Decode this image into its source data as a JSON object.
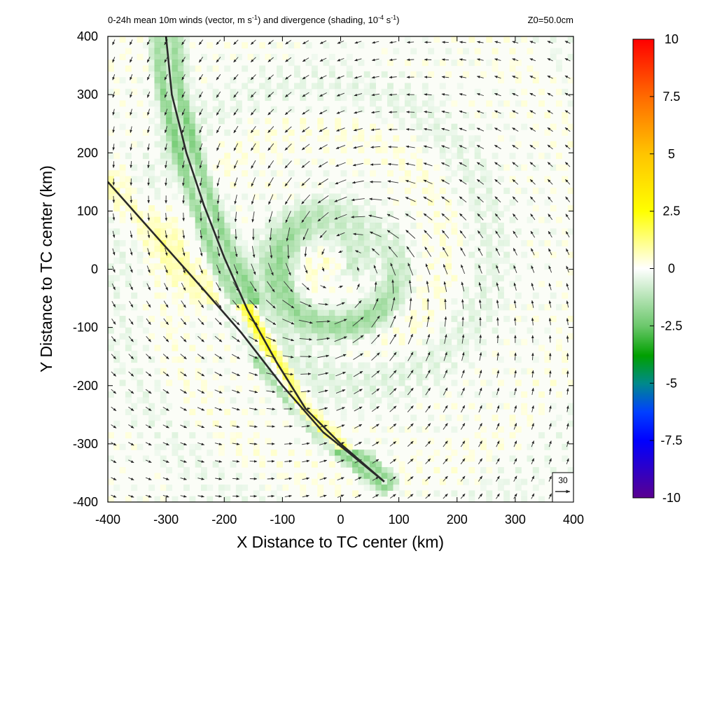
{
  "chart_data": {
    "type": "heatmap",
    "title": {
      "lead": "0-24h mean 10m winds (vector, m s",
      "exp1": "-1",
      "mid": ") and divergence (shading, 10",
      "exp2": "-4",
      "unit": " s",
      "exp3": "-1",
      "tail": ")"
    },
    "annotation": "Z0=50.0cm",
    "xlabel": "X Distance to TC center (km)",
    "ylabel": "Y Distance to TC center (km)",
    "xlim": [
      -400,
      400
    ],
    "ylim": [
      -400,
      400
    ],
    "xticks": [
      "-400",
      "-300",
      "-200",
      "-100",
      "0",
      "100",
      "200",
      "300",
      "400"
    ],
    "yticks": [
      "400",
      "300",
      "200",
      "100",
      "0",
      "-100",
      "-200",
      "-300",
      "-400"
    ],
    "colorbar": {
      "range": [
        -10,
        10
      ],
      "labels": [
        "10",
        "7.5",
        "5",
        "2.5",
        "0",
        "-2.5",
        "-5",
        "-7.5",
        "-10"
      ],
      "colors": [
        "#ff0000",
        "#ff7000",
        "#ffc000",
        "#ffff00",
        "#ffffff",
        "#7fd07f",
        "#00a000",
        "#0060c0",
        "#0000ff",
        "#5a0090"
      ]
    },
    "reference_vector": {
      "label": "30",
      "speed": 30
    },
    "vortex_center": [
      0,
      0
    ],
    "rmw_km": 100,
    "front_lines": [
      {
        "name": "",
        "points": [
          [
            -300,
            400
          ],
          [
            -290,
            300
          ],
          [
            -265,
            200
          ],
          [
            -235,
            110
          ],
          [
            -200,
            20
          ],
          [
            -160,
            -70
          ],
          [
            -110,
            -160
          ],
          [
            -60,
            -240
          ],
          [
            0,
            -300
          ],
          [
            75,
            -365
          ]
        ]
      },
      {
        "name": "",
        "points": [
          [
            -400,
            150
          ],
          [
            -320,
            60
          ],
          [
            -240,
            -30
          ],
          [
            -170,
            -110
          ],
          [
            -100,
            -200
          ],
          [
            -30,
            -280
          ],
          [
            20,
            -320
          ],
          [
            75,
            -365
          ]
        ]
      }
    ]
  }
}
